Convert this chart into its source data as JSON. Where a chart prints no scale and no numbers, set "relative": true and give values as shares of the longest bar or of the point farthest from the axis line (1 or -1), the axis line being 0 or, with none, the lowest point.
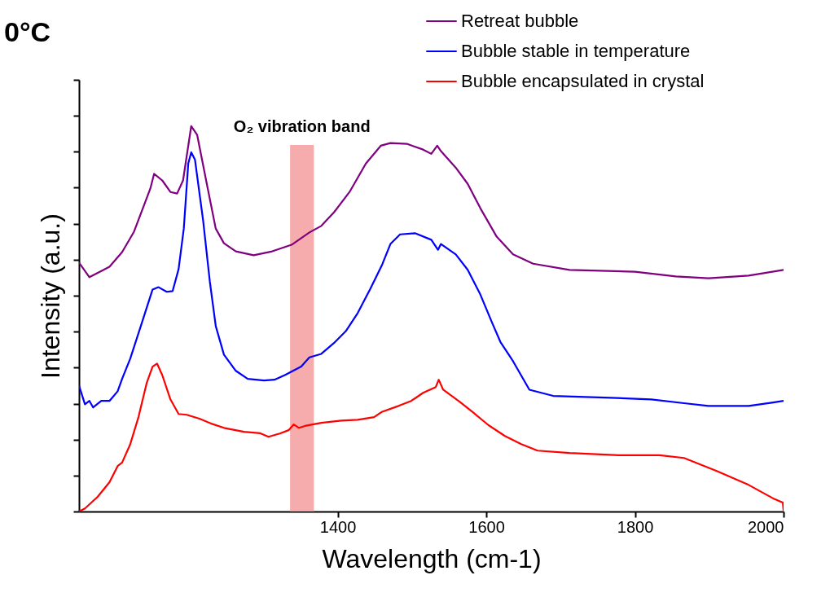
{
  "chart_data": {
    "type": "line",
    "relative": true,
    "xlabel": "Wavelength (cm-1)",
    "ylabel": "Intensity (a.u.)",
    "xlim": [
      1052,
      2000
    ],
    "xticks": [
      1400,
      1600,
      1800,
      2000
    ],
    "legend": "top right",
    "grid": false,
    "line_style": "solid",
    "annotations": [
      "0°C"
    ],
    "bands": [
      {
        "axis": "x",
        "from": 1336,
        "to": 1368,
        "label": "O₂ vibration band",
        "color": "#f5a3a3"
      }
    ],
    "series": [
      {
        "name": "Retreat bubble",
        "color": "#800080",
        "x": [
          1052,
          1066,
          1082,
          1093,
          1110,
          1126,
          1148,
          1153,
          1164,
          1175,
          1184,
          1192,
          1203,
          1211,
          1225,
          1236,
          1247,
          1263,
          1287,
          1312,
          1338,
          1362,
          1378,
          1395,
          1416,
          1438,
          1458,
          1471,
          1493,
          1515,
          1526,
          1534,
          1539,
          1559,
          1575,
          1592,
          1614,
          1636,
          1663,
          1712,
          1800,
          1855,
          1899,
          1953,
          2000
        ],
        "values": [
          0.646,
          0.608,
          0.624,
          0.635,
          0.673,
          0.726,
          0.838,
          0.876,
          0.859,
          0.829,
          0.825,
          0.859,
          1.0,
          0.977,
          0.84,
          0.734,
          0.696,
          0.675,
          0.665,
          0.675,
          0.692,
          0.724,
          0.741,
          0.776,
          0.829,
          0.903,
          0.949,
          0.956,
          0.954,
          0.939,
          0.928,
          0.949,
          0.935,
          0.892,
          0.85,
          0.787,
          0.713,
          0.667,
          0.643,
          0.627,
          0.622,
          0.61,
          0.605,
          0.612,
          0.627
        ]
      },
      {
        "name": "Bubble stable in temperature",
        "color": "#0000ff",
        "x": [
          1052,
          1060,
          1066,
          1071,
          1082,
          1093,
          1104,
          1110,
          1121,
          1137,
          1151,
          1159,
          1170,
          1178,
          1186,
          1193,
          1199,
          1203,
          1208,
          1219,
          1228,
          1236,
          1247,
          1263,
          1279,
          1301,
          1315,
          1329,
          1340,
          1351,
          1362,
          1378,
          1395,
          1411,
          1427,
          1444,
          1460,
          1471,
          1484,
          1504,
          1526,
          1535,
          1539,
          1559,
          1575,
          1592,
          1608,
          1619,
          1636,
          1658,
          1690,
          1768,
          1822,
          1866,
          1899,
          1953,
          1986,
          2000
        ],
        "values": [
          0.327,
          0.278,
          0.287,
          0.27,
          0.287,
          0.287,
          0.312,
          0.344,
          0.397,
          0.492,
          0.576,
          0.582,
          0.57,
          0.572,
          0.629,
          0.734,
          0.903,
          0.932,
          0.913,
          0.755,
          0.597,
          0.481,
          0.407,
          0.365,
          0.344,
          0.34,
          0.342,
          0.354,
          0.365,
          0.376,
          0.4,
          0.409,
          0.437,
          0.468,
          0.515,
          0.578,
          0.641,
          0.694,
          0.719,
          0.722,
          0.705,
          0.679,
          0.694,
          0.667,
          0.627,
          0.563,
          0.489,
          0.44,
          0.39,
          0.316,
          0.3,
          0.295,
          0.291,
          0.281,
          0.274,
          0.274,
          0.283,
          0.287
        ]
      },
      {
        "name": "Bubble encapsulated in crystal",
        "color": "#ff0000",
        "x": [
          1052,
          1060,
          1077,
          1093,
          1104,
          1110,
          1121,
          1132,
          1143,
          1151,
          1157,
          1164,
          1175,
          1186,
          1197,
          1214,
          1230,
          1247,
          1274,
          1296,
          1307,
          1323,
          1334,
          1341,
          1348,
          1356,
          1378,
          1405,
          1427,
          1449,
          1460,
          1482,
          1499,
          1515,
          1532,
          1536,
          1542,
          1564,
          1581,
          1603,
          1625,
          1647,
          1669,
          1712,
          1778,
          1833,
          1866,
          1910,
          1953,
          1986,
          1999,
          2000
        ],
        "values": [
          0.0,
          0.008,
          0.038,
          0.076,
          0.118,
          0.127,
          0.175,
          0.245,
          0.333,
          0.376,
          0.384,
          0.354,
          0.291,
          0.253,
          0.251,
          0.241,
          0.228,
          0.217,
          0.207,
          0.203,
          0.194,
          0.203,
          0.211,
          0.226,
          0.217,
          0.222,
          0.23,
          0.236,
          0.238,
          0.245,
          0.259,
          0.274,
          0.287,
          0.308,
          0.323,
          0.342,
          0.316,
          0.285,
          0.259,
          0.224,
          0.196,
          0.175,
          0.158,
          0.152,
          0.146,
          0.146,
          0.139,
          0.105,
          0.069,
          0.034,
          0.023,
          0.002
        ]
      }
    ]
  }
}
